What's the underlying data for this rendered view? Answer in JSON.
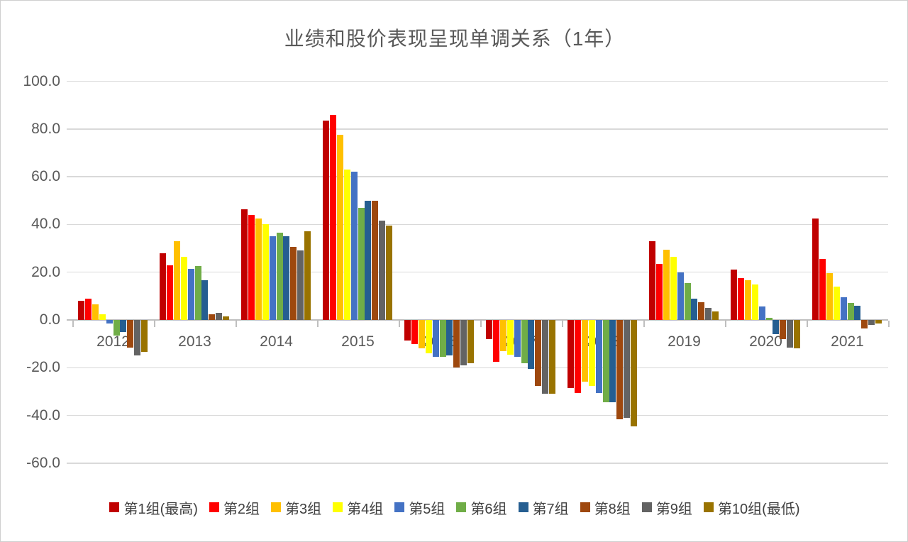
{
  "chart_data": {
    "type": "bar",
    "title": "业绩和股价表现呈现单调关系（1年）",
    "categories": [
      "2012",
      "2013",
      "2014",
      "2015",
      "2016",
      "2017",
      "2018",
      "2019",
      "2020",
      "2021"
    ],
    "series": [
      {
        "name": "第1组(最高)",
        "color": "#C00000",
        "values": [
          8.0,
          28.0,
          46.5,
          83.5,
          -8.5,
          -8.0,
          -28.5,
          33.0,
          21.0,
          42.5
        ]
      },
      {
        "name": "第2组",
        "color": "#FF0000",
        "values": [
          9.0,
          23.0,
          44.0,
          86.0,
          -10.0,
          -17.5,
          -30.5,
          23.5,
          17.5,
          25.5
        ]
      },
      {
        "name": "第3组",
        "color": "#FFC000",
        "values": [
          6.5,
          33.0,
          42.5,
          77.5,
          -12.0,
          -13.0,
          -26.0,
          29.5,
          16.5,
          19.5
        ]
      },
      {
        "name": "第4组",
        "color": "#FFFF00",
        "values": [
          2.5,
          26.5,
          40.0,
          63.0,
          -14.0,
          -14.5,
          -27.5,
          26.5,
          15.0,
          14.0
        ]
      },
      {
        "name": "第5组",
        "color": "#4472C4",
        "values": [
          -1.5,
          21.5,
          35.0,
          62.0,
          -15.5,
          -15.5,
          -30.5,
          20.0,
          5.5,
          9.5
        ]
      },
      {
        "name": "第6组",
        "color": "#70AD47",
        "values": [
          -6.5,
          22.5,
          36.5,
          47.0,
          -15.5,
          -18.0,
          -34.5,
          15.5,
          1.0,
          7.0
        ]
      },
      {
        "name": "第7组",
        "color": "#255E91",
        "values": [
          -5.0,
          16.5,
          35.0,
          50.0,
          -15.0,
          -20.5,
          -34.5,
          9.0,
          -6.0,
          6.0
        ]
      },
      {
        "name": "第8组",
        "color": "#9E480E",
        "values": [
          -11.5,
          2.5,
          30.5,
          50.0,
          -20.0,
          -27.5,
          -41.5,
          7.5,
          -8.0,
          -3.5
        ]
      },
      {
        "name": "第9组",
        "color": "#636363",
        "values": [
          -15.0,
          3.0,
          29.0,
          41.5,
          -19.0,
          -31.0,
          -41.0,
          5.0,
          -11.5,
          -2.0
        ]
      },
      {
        "name": "第10组(最低)",
        "color": "#997300",
        "values": [
          -13.5,
          1.5,
          37.0,
          39.5,
          -18.0,
          -31.0,
          -44.5,
          3.5,
          -12.0,
          -1.5
        ]
      }
    ],
    "xlabel": "",
    "ylabel": "",
    "ylim": [
      -60,
      100
    ],
    "ytick_values": [
      100,
      80,
      60,
      40,
      20,
      0,
      -20,
      -40,
      -60
    ],
    "ytick_labels": [
      "100.0",
      "80.0",
      "60.0",
      "40.0",
      "20.0",
      "0.0",
      "-20.0",
      "-40.0",
      "-60.0"
    ],
    "grid": "horizontal",
    "legend_position": "bottom",
    "colors": {
      "gridline": "#D9D9D9",
      "axis_line": "#BFBFBF",
      "title_text": "#595959",
      "axis_text": "#595959",
      "legend_text": "#404040",
      "background": "#FFFFFF"
    }
  }
}
